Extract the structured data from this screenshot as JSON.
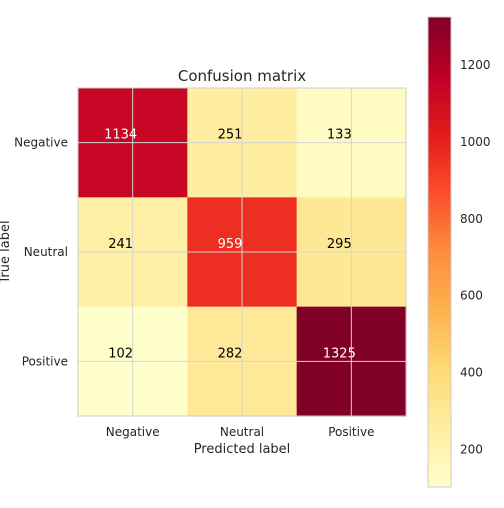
{
  "chart_data": {
    "type": "heatmap",
    "title": "Confusion matrix",
    "xlabel": "Predicted label",
    "ylabel": "True label",
    "x_categories": [
      "Negative",
      "Neutral",
      "Positive"
    ],
    "y_categories": [
      "Negative",
      "Neutral",
      "Positive"
    ],
    "values": [
      [
        1134,
        251,
        133
      ],
      [
        241,
        959,
        295
      ],
      [
        102,
        282,
        1325
      ]
    ],
    "colormap": "YlOrRd",
    "colorbar": {
      "ticks": [
        200,
        400,
        600,
        800,
        1000,
        1200
      ],
      "range": [
        102,
        1325
      ]
    },
    "grid": true
  }
}
